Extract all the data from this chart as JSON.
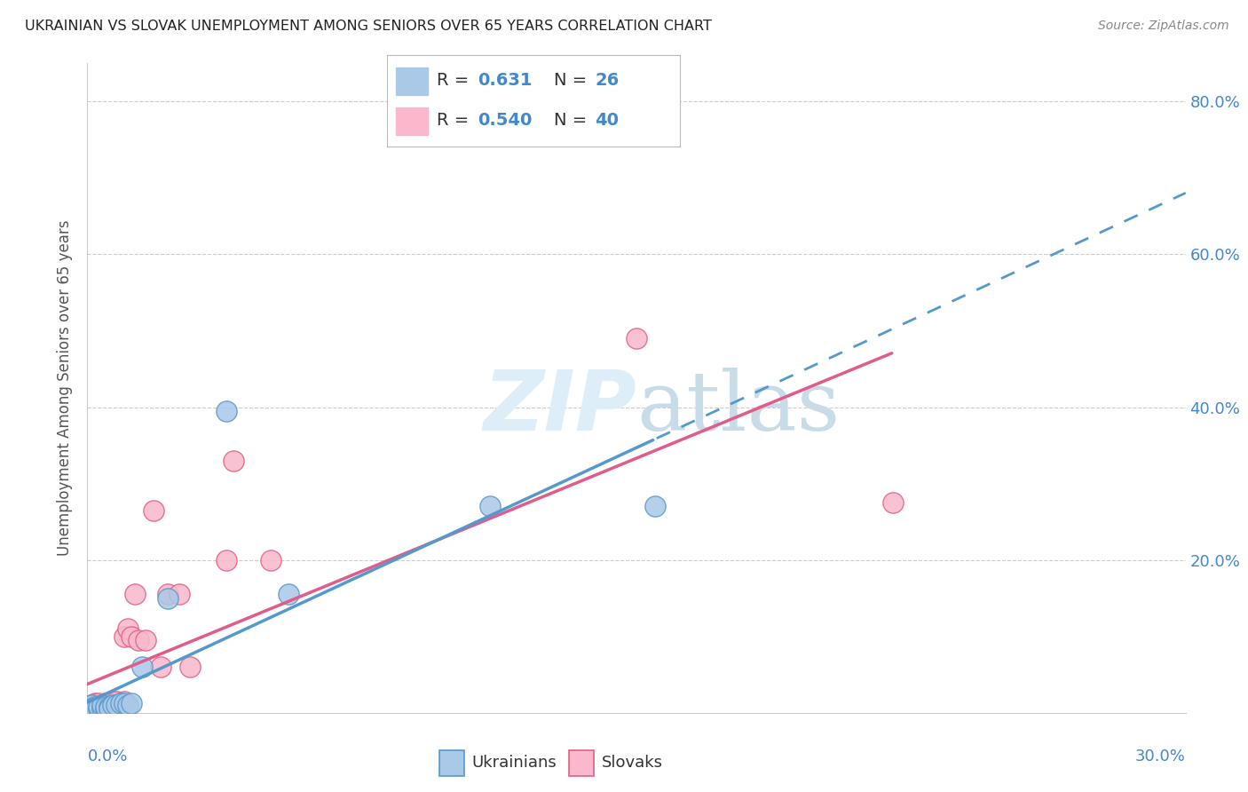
{
  "title": "UKRAINIAN VS SLOVAK UNEMPLOYMENT AMONG SENIORS OVER 65 YEARS CORRELATION CHART",
  "source": "Source: ZipAtlas.com",
  "ylabel": "Unemployment Among Seniors over 65 years",
  "xlim": [
    0.0,
    0.3
  ],
  "ylim": [
    0.0,
    0.85
  ],
  "yticks": [
    0.0,
    0.2,
    0.4,
    0.6,
    0.8
  ],
  "ytick_labels": [
    "",
    "20.0%",
    "40.0%",
    "60.0%",
    "80.0%"
  ],
  "ukrainians": {
    "color": "#aac8e8",
    "edge_color": "#5599cc",
    "x": [
      0.001,
      0.001,
      0.001,
      0.002,
      0.002,
      0.002,
      0.003,
      0.003,
      0.004,
      0.004,
      0.005,
      0.005,
      0.006,
      0.006,
      0.007,
      0.008,
      0.009,
      0.01,
      0.011,
      0.012,
      0.015,
      0.022,
      0.038,
      0.055,
      0.11,
      0.155
    ],
    "y": [
      0.005,
      0.01,
      0.005,
      0.005,
      0.008,
      0.005,
      0.005,
      0.008,
      0.005,
      0.01,
      0.005,
      0.008,
      0.008,
      0.005,
      0.01,
      0.01,
      0.012,
      0.012,
      0.01,
      0.012,
      0.06,
      0.15,
      0.395,
      0.155,
      0.27,
      0.27
    ]
  },
  "slovaks": {
    "color": "#f9b8cc",
    "edge_color": "#e06080",
    "x": [
      0.001,
      0.001,
      0.001,
      0.002,
      0.002,
      0.002,
      0.002,
      0.003,
      0.003,
      0.003,
      0.004,
      0.004,
      0.005,
      0.005,
      0.005,
      0.006,
      0.006,
      0.007,
      0.007,
      0.008,
      0.008,
      0.009,
      0.009,
      0.01,
      0.01,
      0.011,
      0.012,
      0.013,
      0.014,
      0.016,
      0.018,
      0.02,
      0.022,
      0.025,
      0.028,
      0.038,
      0.04,
      0.05,
      0.15,
      0.22
    ],
    "y": [
      0.005,
      0.008,
      0.01,
      0.005,
      0.008,
      0.01,
      0.012,
      0.005,
      0.01,
      0.012,
      0.005,
      0.01,
      0.005,
      0.008,
      0.012,
      0.008,
      0.012,
      0.01,
      0.015,
      0.012,
      0.015,
      0.01,
      0.012,
      0.015,
      0.1,
      0.11,
      0.1,
      0.155,
      0.095,
      0.095,
      0.265,
      0.06,
      0.155,
      0.155,
      0.06,
      0.2,
      0.33,
      0.2,
      0.49,
      0.275
    ]
  },
  "uk_line_color": "#5599cc",
  "sk_line_color": "#e05c8a",
  "background_color": "#ffffff",
  "grid_color": "#cccccc",
  "title_color": "#222222",
  "source_color": "#888888",
  "axis_label_color": "#555555",
  "tick_color": "#4488cc",
  "watermark_color": "#ddeef8"
}
